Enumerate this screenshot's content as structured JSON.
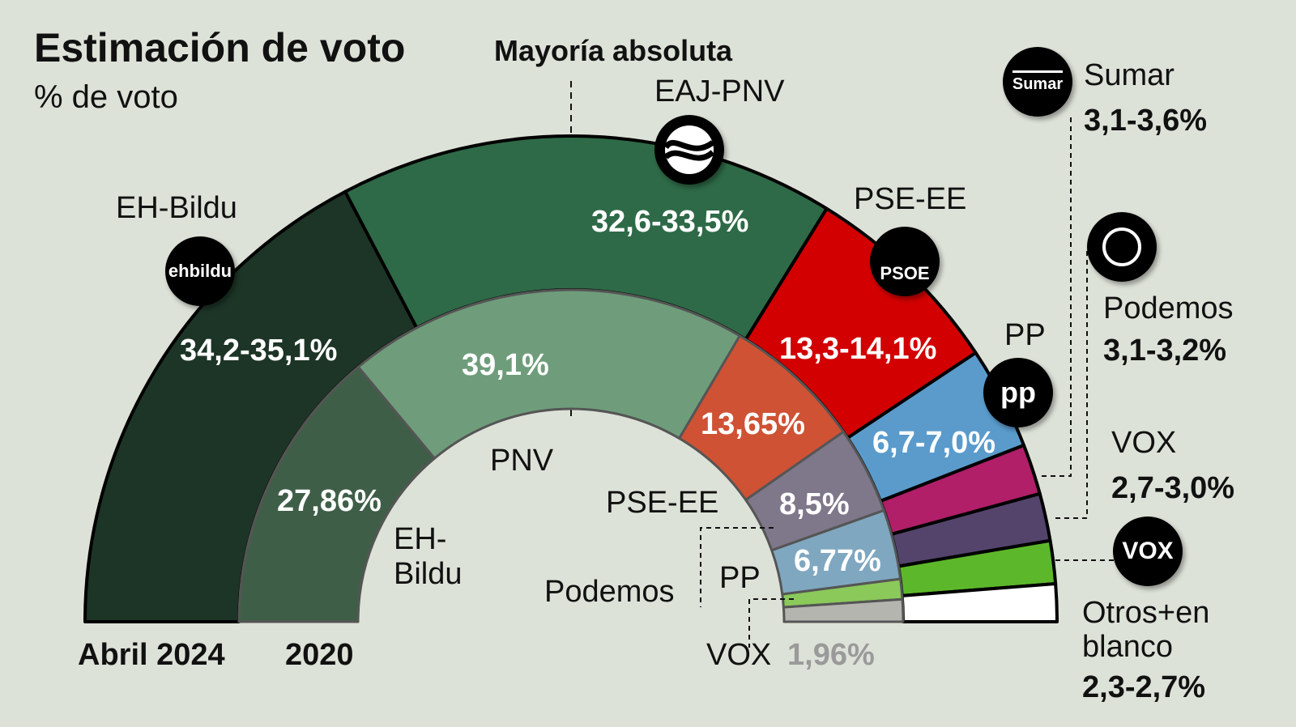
{
  "chart_data": {
    "type": "pie",
    "subtype": "half-donut",
    "title": "Estimación de voto",
    "subtitle": "% de voto",
    "annotation": "Mayoría absoluta",
    "series": [
      {
        "name": "Abril 2024",
        "ring": "outer",
        "slices": [
          {
            "party": "EH-Bildu",
            "label": "34,2-35,1%",
            "value": 34.65,
            "color": "#1d3527"
          },
          {
            "party": "EAJ-PNV",
            "label": "32,6-33,5%",
            "value": 33.05,
            "color": "#2e6a47"
          },
          {
            "party": "PSE-EE",
            "label": "13,3-14,1%",
            "value": 13.7,
            "color": "#d20000"
          },
          {
            "party": "PP",
            "label": "6,7-7,0%",
            "value": 6.85,
            "color": "#5a9bcc"
          },
          {
            "party": "Sumar",
            "label": "3,1-3,6%",
            "value": 3.35,
            "color": "#b01f68"
          },
          {
            "party": "Podemos",
            "label": "3,1-3,2%",
            "value": 3.15,
            "color": "#54446c"
          },
          {
            "party": "VOX",
            "label": "2,7-3,0%",
            "value": 2.85,
            "color": "#5cb82a"
          },
          {
            "party": "Otros+en blanco",
            "label": "2,3-2,7%",
            "value": 2.5,
            "color": "#ffffff"
          }
        ]
      },
      {
        "name": "2020",
        "ring": "inner",
        "slices": [
          {
            "party": "EH-Bildu",
            "label": "27,86%",
            "value": 27.86,
            "color": "#3f5e48"
          },
          {
            "party": "PNV",
            "label": "39,1%",
            "value": 39.1,
            "color": "#6f9d7b"
          },
          {
            "party": "PSE-EE",
            "label": "13,65%",
            "value": 13.65,
            "color": "#cf5234"
          },
          {
            "party": "Podemos",
            "label": "8,5%",
            "value": 8.5,
            "color": "#7f778a"
          },
          {
            "party": "PP",
            "label": "6,77%",
            "value": 6.77,
            "color": "#7fa7c0"
          },
          {
            "party": "VOX",
            "label": "1,96%",
            "value": 1.96,
            "color": "#8ac95a"
          },
          {
            "party": "Otros",
            "label": "",
            "value": 2.16,
            "color": "#b5b5b0"
          }
        ]
      }
    ]
  },
  "inner_labels": {
    "bildu": "EH-",
    "bildu2": "Bildu",
    "pnv": "PNV",
    "pse": "PSE-EE",
    "podemos": "Podemos",
    "pp": "PP",
    "vox": "VOX"
  },
  "logos": {
    "bildu": "ehbildu",
    "pse": "PSOE",
    "sumar": "Sumar",
    "pp": "pp",
    "vox": "VOX"
  },
  "colors": {
    "background": "#dde2d8"
  }
}
